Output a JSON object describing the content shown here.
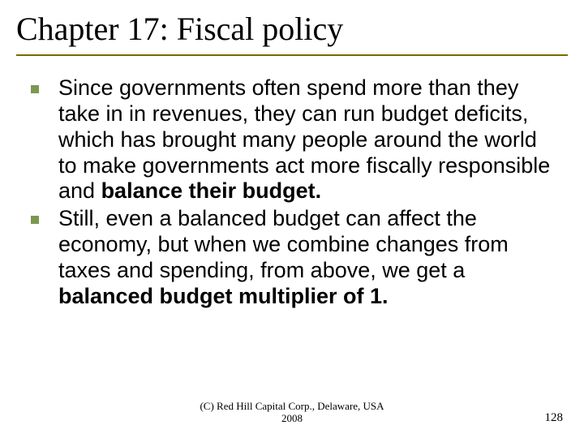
{
  "slide": {
    "title": "Chapter 17: Fiscal policy",
    "title_color": "#000000",
    "title_fontsize": 40,
    "title_fontfamily": "Garamond",
    "rule_color": "#7a6a00",
    "background_color": "#ffffff"
  },
  "bullets": [
    {
      "segments": [
        {
          "text": "Since governments often spend more than they take in in revenues, they can run budget deficits, which has brought many people around the world to make governments act more fiscally responsible and ",
          "bold": false
        },
        {
          "text": "balance their budget.",
          "bold": true
        }
      ]
    },
    {
      "segments": [
        {
          "text": "Still, even a balanced budget can affect the economy, but when we combine changes from taxes and spending, from above, we get a ",
          "bold": false
        },
        {
          "text": "balanced budget multiplier of 1.",
          "bold": true
        }
      ]
    }
  ],
  "bullet_style": {
    "marker_color": "#7a994d",
    "marker_size": 10,
    "text_color": "#000000",
    "text_fontsize": 27,
    "text_fontfamily": "Arial"
  },
  "footer": {
    "line1": "(C) Red Hill Capital Corp., Delaware, USA",
    "line2": "2008",
    "fontsize": 13,
    "fontfamily": "Garamond"
  },
  "page_number": "128"
}
